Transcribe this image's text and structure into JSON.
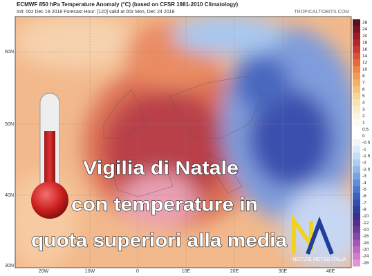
{
  "header": {
    "title": "ECMWF 850 hPa Temperature Anomaly (°C) (based on CFSR 1981-2010 Climatology)",
    "init": "Init: 00z Dec 19 2018   Forecast Hour: [120]   valid at 00z Mon, Dec 24 2018",
    "site": "TROPICALTIDBITS.COM"
  },
  "overlay": {
    "lines": [
      "Vigilia di Natale",
      "con temperature in",
      "quota superiori alla media"
    ]
  },
  "logo": {
    "caption": "NOTIZIE METEO ITALIA"
  },
  "colorbar": {
    "labels": [
      28,
      24,
      20,
      18,
      16,
      14,
      12,
      10,
      8,
      7,
      6,
      5,
      4,
      3,
      2,
      1,
      0.5,
      0,
      -0.5,
      -1,
      -1.5,
      -2,
      -2.5,
      -3,
      -4,
      -5,
      -6,
      -7,
      -8,
      -10,
      -12,
      -14,
      -16,
      -18,
      -20,
      -24,
      -28
    ]
  },
  "axes": {
    "lat": [
      "60N",
      "50N",
      "40N",
      "30N"
    ],
    "lon": [
      "20W",
      "10W",
      "0",
      "10E",
      "20E",
      "30E",
      "40E"
    ]
  }
}
